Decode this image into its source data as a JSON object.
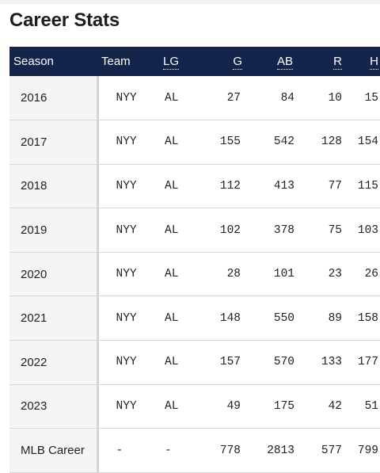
{
  "page": {
    "title": "Career Stats"
  },
  "table": {
    "headers": {
      "season": "Season",
      "team": "Team",
      "lg": "LG",
      "g": "G",
      "ab": "AB",
      "r": "R",
      "h": "H"
    },
    "rows": [
      {
        "season": "2016",
        "team": "NYY",
        "lg": "AL",
        "g": "27",
        "ab": "84",
        "r": "10",
        "h": "15"
      },
      {
        "season": "2017",
        "team": "NYY",
        "lg": "AL",
        "g": "155",
        "ab": "542",
        "r": "128",
        "h": "154"
      },
      {
        "season": "2018",
        "team": "NYY",
        "lg": "AL",
        "g": "112",
        "ab": "413",
        "r": "77",
        "h": "115"
      },
      {
        "season": "2019",
        "team": "NYY",
        "lg": "AL",
        "g": "102",
        "ab": "378",
        "r": "75",
        "h": "103"
      },
      {
        "season": "2020",
        "team": "NYY",
        "lg": "AL",
        "g": "28",
        "ab": "101",
        "r": "23",
        "h": "26"
      },
      {
        "season": "2021",
        "team": "NYY",
        "lg": "AL",
        "g": "148",
        "ab": "550",
        "r": "89",
        "h": "158"
      },
      {
        "season": "2022",
        "team": "NYY",
        "lg": "AL",
        "g": "157",
        "ab": "570",
        "r": "133",
        "h": "177"
      },
      {
        "season": "2023",
        "team": "NYY",
        "lg": "AL",
        "g": "49",
        "ab": "175",
        "r": "42",
        "h": "51"
      },
      {
        "season": "MLB Career",
        "team": "-",
        "lg": "-",
        "g": "778",
        "ab": "2813",
        "r": "577",
        "h": "799"
      }
    ]
  },
  "colors": {
    "header_bg": "#14254b",
    "season_col_bg": "#f5f5f5"
  }
}
